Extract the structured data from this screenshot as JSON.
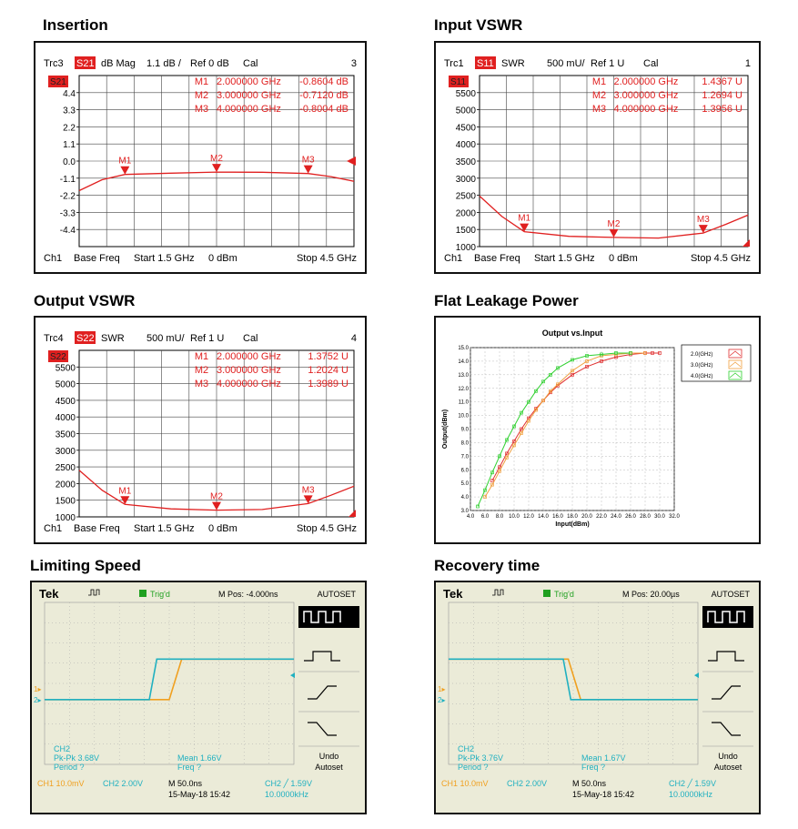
{
  "titles": {
    "insertion": "Insertion",
    "input_vswr": "Input VSWR",
    "output_vswr": "Output VSWR",
    "flat_leakage": "Flat Leakage Power",
    "limiting_speed": "Limiting Speed",
    "recovery_time": "Recovery time"
  },
  "colors": {
    "trace_red": "#e02020",
    "scope_cyan": "#20b0c0",
    "scope_orange": "#f0a020",
    "scope_bg": "#ebebd8",
    "scope_green": "#20a020"
  },
  "chart_data": [
    {
      "id": "insertion",
      "type": "line",
      "header": {
        "trace": "Trc3",
        "param": "S21",
        "format": "dB Mag",
        "scale": "1.1 dB /",
        "ref": "Ref 0 dB",
        "cal": "Cal",
        "num": "3"
      },
      "badge": "S21",
      "y_ticks": [
        "4.4",
        "3.3",
        "2.2",
        "1.1",
        "0.0",
        "-1.1",
        "-2.2",
        "-3.3",
        "-4.4"
      ],
      "ylim": [
        -5.5,
        5.5
      ],
      "xlim": [
        1.5,
        4.5
      ],
      "markers": [
        {
          "name": "M1",
          "x": 2.0,
          "label": "M1",
          "freq": "2.000000 GHz",
          "value": "-0.8604 dB"
        },
        {
          "name": "M2",
          "x": 3.0,
          "label": "M2",
          "freq": "3.000000 GHz",
          "value": "-0.7120 dB"
        },
        {
          "name": "M3",
          "x": 4.0,
          "label": "M3",
          "freq": "4.000000 GHz",
          "value": "-0.8004 dB"
        }
      ],
      "series": [
        {
          "x": [
            1.5,
            1.75,
            2.0,
            2.5,
            3.0,
            3.5,
            4.0,
            4.25,
            4.5
          ],
          "values": [
            -1.9,
            -1.2,
            -0.86,
            -0.78,
            -0.71,
            -0.72,
            -0.8,
            -1.0,
            -1.3
          ]
        }
      ],
      "footer": {
        "ch": "Ch1",
        "mode": "Base Freq",
        "start": "Start  1.5 GHz",
        "power": "0 dBm",
        "stop": "Stop  4.5 GHz"
      }
    },
    {
      "id": "input_vswr",
      "type": "line",
      "header": {
        "trace": "Trc1",
        "param": "S11",
        "format": "SWR",
        "scale": "500 mU/",
        "ref": "Ref 1 U",
        "cal": "Cal",
        "num": "1"
      },
      "badge": "S11",
      "y_ticks": [
        "5500",
        "5000",
        "4500",
        "4000",
        "3500",
        "3000",
        "2500",
        "2000",
        "1500",
        "1000"
      ],
      "ylim": [
        1000,
        6000
      ],
      "xlim": [
        1.5,
        4.5
      ],
      "markers": [
        {
          "name": "M1",
          "x": 2.0,
          "label": "M1",
          "freq": "2.000000 GHz",
          "value": "1.4367 U"
        },
        {
          "name": "M2",
          "x": 3.0,
          "label": "M2",
          "freq": "3.000000 GHz",
          "value": "1.2694 U"
        },
        {
          "name": "M3",
          "x": 4.0,
          "label": "M3",
          "freq": "4.000000 GHz",
          "value": "1.3956 U"
        }
      ],
      "series": [
        {
          "x": [
            1.5,
            1.75,
            2.0,
            2.5,
            3.0,
            3.5,
            4.0,
            4.25,
            4.5
          ],
          "values": [
            2480,
            1880,
            1437,
            1300,
            1269,
            1250,
            1396,
            1650,
            1920
          ]
        }
      ],
      "footer": {
        "ch": "Ch1",
        "mode": "Base Freq",
        "start": "Start  1.5 GHz",
        "power": "0 dBm",
        "stop": "Stop  4.5 GHz"
      }
    },
    {
      "id": "output_vswr",
      "type": "line",
      "header": {
        "trace": "Trc4",
        "param": "S22",
        "format": "SWR",
        "scale": "500 mU/",
        "ref": "Ref 1 U",
        "cal": "Cal",
        "num": "4"
      },
      "badge": "S22",
      "y_ticks": [
        "5500",
        "5000",
        "4500",
        "4000",
        "3500",
        "3000",
        "2500",
        "2000",
        "1500",
        "1000"
      ],
      "ylim": [
        1000,
        6000
      ],
      "xlim": [
        1.5,
        4.5
      ],
      "markers": [
        {
          "name": "M1",
          "x": 2.0,
          "label": "M1",
          "freq": "2.000000 GHz",
          "value": "1.3752 U"
        },
        {
          "name": "M2",
          "x": 3.0,
          "label": "M2",
          "freq": "3.000000 GHz",
          "value": "1.2024 U"
        },
        {
          "name": "M3",
          "x": 4.0,
          "label": "M3",
          "freq": "4.000000 GHz",
          "value": "1.3989 U"
        }
      ],
      "series": [
        {
          "x": [
            1.5,
            1.75,
            2.0,
            2.5,
            3.0,
            3.5,
            4.0,
            4.25,
            4.5
          ],
          "values": [
            2400,
            1800,
            1375,
            1240,
            1202,
            1220,
            1399,
            1650,
            1920
          ]
        }
      ],
      "footer": {
        "ch": "Ch1",
        "mode": "Base Freq",
        "start": "Start  1.5 GHz",
        "power": "0 dBm",
        "stop": "Stop  4.5 GHz"
      }
    },
    {
      "id": "flat_leakage",
      "type": "line",
      "title": "Output vs.Input",
      "xlabel": "Input(dBm)",
      "ylabel": "Output(dBm)",
      "xlim": [
        4.0,
        32.0
      ],
      "ylim": [
        3.0,
        15.0
      ],
      "x_ticks": [
        "4.0",
        "6.0",
        "8.0",
        "10.0",
        "12.0",
        "14.0",
        "16.0",
        "18.0",
        "20.0",
        "22.0",
        "24.0",
        "26.0",
        "28.0",
        "30.0",
        "32.0"
      ],
      "y_ticks": [
        "3.0",
        "4.0",
        "5.0",
        "6.0",
        "7.0",
        "8.0",
        "9.0",
        "10.0",
        "11.0",
        "12.0",
        "13.0",
        "14.0",
        "15.0"
      ],
      "grid": true,
      "legend_position": "top-right",
      "series": [
        {
          "name": "2.0(GHz)",
          "color": "#e03030",
          "x": [
            7,
            8,
            9,
            10,
            11,
            12,
            13,
            14,
            15,
            16,
            18,
            20,
            22,
            24,
            26,
            28,
            29,
            30
          ],
          "values": [
            5.2,
            6.2,
            7.2,
            8.1,
            9.0,
            9.8,
            10.5,
            11.1,
            11.7,
            12.2,
            13.0,
            13.6,
            14.0,
            14.3,
            14.5,
            14.6,
            14.6,
            14.6
          ]
        },
        {
          "name": "3.0(GHz)",
          "color": "#f0a040",
          "x": [
            6,
            7,
            8,
            9,
            10,
            11,
            12,
            13,
            14,
            15,
            16,
            18,
            20,
            22,
            24,
            26,
            28
          ],
          "values": [
            4.0,
            4.9,
            5.9,
            6.9,
            7.8,
            8.7,
            9.6,
            10.4,
            11.1,
            11.8,
            12.3,
            13.3,
            14.0,
            14.4,
            14.5,
            14.6,
            14.6
          ]
        },
        {
          "name": "4.0(GHz)",
          "color": "#30d030",
          "x": [
            5,
            6,
            7,
            8,
            9,
            10,
            11,
            12,
            13,
            14,
            15,
            16,
            18,
            20,
            22,
            24,
            26
          ],
          "values": [
            3.3,
            4.5,
            5.8,
            7.0,
            8.2,
            9.2,
            10.2,
            11.0,
            11.8,
            12.5,
            13.0,
            13.5,
            14.1,
            14.4,
            14.5,
            14.6,
            14.6
          ]
        }
      ]
    },
    {
      "id": "limiting_speed",
      "type": "line",
      "brand": "Tek",
      "trig": "Trig'd",
      "mpos": "M Pos: -4.000ns",
      "autoset": "AUTOSET",
      "undo": [
        "Undo",
        "Autoset"
      ],
      "ch_label": "CH2",
      "pk": "Pk-Pk 3.68V",
      "period": "Period ?",
      "mean": "Mean 1.66V",
      "freq": "Freq ?",
      "footer": {
        "ch1": "CH1  10.0mV",
        "ch2": "CH2  2.00V",
        "m": "M 50.0ns",
        "date": "15-May-18 15:42",
        "trig": "CH2 ╱ 1.59V",
        "freqval": "10.0000kHz"
      },
      "ch_markers": [
        "1▸",
        "2▸"
      ],
      "xlim": [
        0,
        10
      ],
      "ylim": [
        0,
        8
      ],
      "edge_direction": "rising",
      "series": [
        {
          "name": "CH1",
          "x": [
            0,
            4.5,
            5.0,
            5.5,
            10
          ],
          "values": [
            3.2,
            3.2,
            3.2,
            5.2,
            5.2
          ]
        },
        {
          "name": "CH2",
          "x": [
            0,
            4.2,
            4.5,
            10
          ],
          "values": [
            3.2,
            3.2,
            5.2,
            5.2
          ]
        }
      ]
    },
    {
      "id": "recovery_time",
      "type": "line",
      "brand": "Tek",
      "trig": "Trig'd",
      "mpos": "M Pos: 20.00µs",
      "autoset": "AUTOSET",
      "undo": [
        "Undo",
        "Autoset"
      ],
      "ch_label": "CH2",
      "pk": "Pk-Pk 3.76V",
      "period": "Period ?",
      "mean": "Mean 1.67V",
      "freq": "Freq ?",
      "footer": {
        "ch1": "CH1  10.0mV",
        "ch2": "CH2  2.00V",
        "m": "M 50.0ns",
        "date": "15-May-18 15:42",
        "trig": "CH2 ╱ 1.59V",
        "freqval": "10.0000kHz"
      },
      "ch_markers": [
        "1▸",
        "2▸"
      ],
      "xlim": [
        0,
        10
      ],
      "ylim": [
        0,
        8
      ],
      "edge_direction": "falling",
      "series": [
        {
          "name": "CH1",
          "x": [
            0,
            4.8,
            5.3,
            10
          ],
          "values": [
            5.2,
            5.2,
            3.2,
            3.2
          ]
        },
        {
          "name": "CH2",
          "x": [
            0,
            4.6,
            4.9,
            10
          ],
          "values": [
            5.2,
            5.2,
            3.2,
            3.2
          ]
        }
      ]
    }
  ]
}
